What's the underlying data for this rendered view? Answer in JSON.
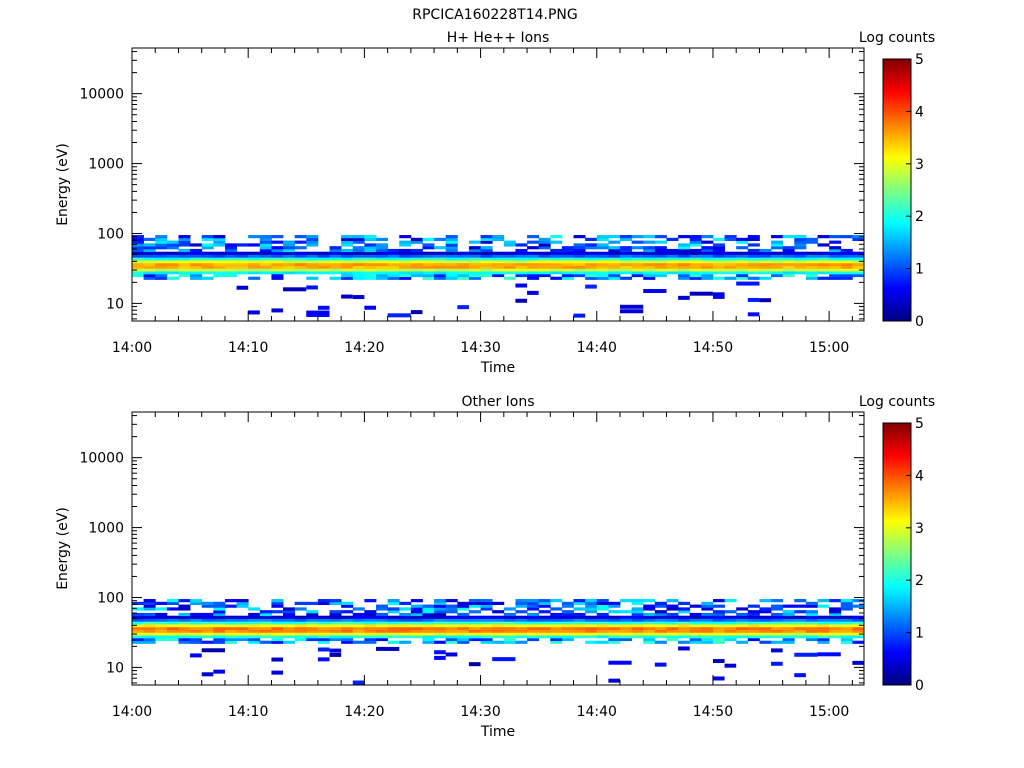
{
  "figure_title": "RPCICA160228T14.PNG",
  "chart_data": [
    {
      "type": "heatmap",
      "title": "H+ He++ Ions",
      "xlabel": "Time",
      "ylabel": "Energy (eV)",
      "x_ticks": [
        "14:00",
        "14:10",
        "14:20",
        "14:30",
        "14:40",
        "14:50",
        "15:00"
      ],
      "x_range": [
        "14:00",
        "15:03"
      ],
      "y_scale": "log",
      "y_ticks": [
        "10",
        "100",
        "1000",
        "10000"
      ],
      "ylim": [
        5.6,
        45000
      ],
      "colorbar_label": "Log counts",
      "colorbar_ticks": [
        "0",
        "1",
        "2",
        "3",
        "4",
        "5"
      ],
      "colorbar_range": [
        0,
        5
      ],
      "colormap": "jet",
      "core_energy_eV": 35,
      "core_log_counts_peak": 3.8,
      "band_energy_range_eV": [
        22,
        95
      ],
      "sparse_low_energy_range_eV": [
        6,
        20
      ],
      "grid": false
    },
    {
      "type": "heatmap",
      "title": "Other Ions",
      "xlabel": "Time",
      "ylabel": "Energy (eV)",
      "x_ticks": [
        "14:00",
        "14:10",
        "14:20",
        "14:30",
        "14:40",
        "14:50",
        "15:00"
      ],
      "x_range": [
        "14:00",
        "15:03"
      ],
      "y_scale": "log",
      "y_ticks": [
        "10",
        "100",
        "1000",
        "10000"
      ],
      "ylim": [
        5.6,
        45000
      ],
      "colorbar_label": "Log counts",
      "colorbar_ticks": [
        "0",
        "1",
        "2",
        "3",
        "4",
        "5"
      ],
      "colorbar_range": [
        0,
        5
      ],
      "colormap": "jet",
      "core_energy_eV": 35,
      "core_log_counts_peak": 4.0,
      "band_energy_range_eV": [
        22,
        95
      ],
      "sparse_low_energy_range_eV": [
        6,
        20
      ],
      "grid": false
    }
  ]
}
